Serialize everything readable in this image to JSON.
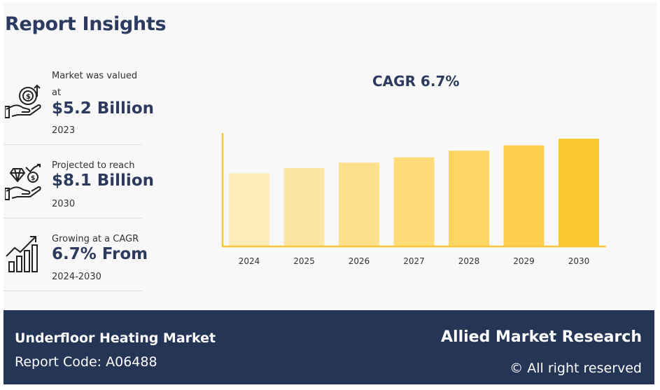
{
  "header": {
    "title": "Report Insights"
  },
  "stats": [
    {
      "label_line1": "Market was valued",
      "label_line2": "at",
      "value": "$5.2 Billion",
      "year": "2023",
      "icon": "money-hand-icon"
    },
    {
      "label_line1": "Projected to reach",
      "label_line2": "",
      "value": "$8.1 Billion",
      "year": "2030",
      "icon": "diamond-hand-icon"
    },
    {
      "label_line1": "Growing at a CAGR",
      "label_line2": "",
      "value": "6.7% From",
      "year": "2024-2030",
      "icon": "growth-chart-icon"
    }
  ],
  "chart_data": {
    "type": "bar",
    "title": "CAGR 6.7%",
    "categories": [
      "2024",
      "2025",
      "2026",
      "2027",
      "2028",
      "2029",
      "2030"
    ],
    "values": [
      5.5,
      5.9,
      6.3,
      6.7,
      7.2,
      7.6,
      8.1
    ],
    "ylim": [
      0,
      10
    ],
    "xlabel": "",
    "ylabel": "",
    "grid": false,
    "legend": "none",
    "colors": [
      "#fdebb8",
      "#fde5a3",
      "#fde08d",
      "#fddb77",
      "#fdd562",
      "#fdcf4b",
      "#fdc933"
    ],
    "axis_color": "#f9c83a"
  },
  "footer": {
    "market": "Underfloor Heating Market",
    "report_code": "Report Code: A06488",
    "brand": "Allied Market Research",
    "rights": "© All right reserved"
  }
}
